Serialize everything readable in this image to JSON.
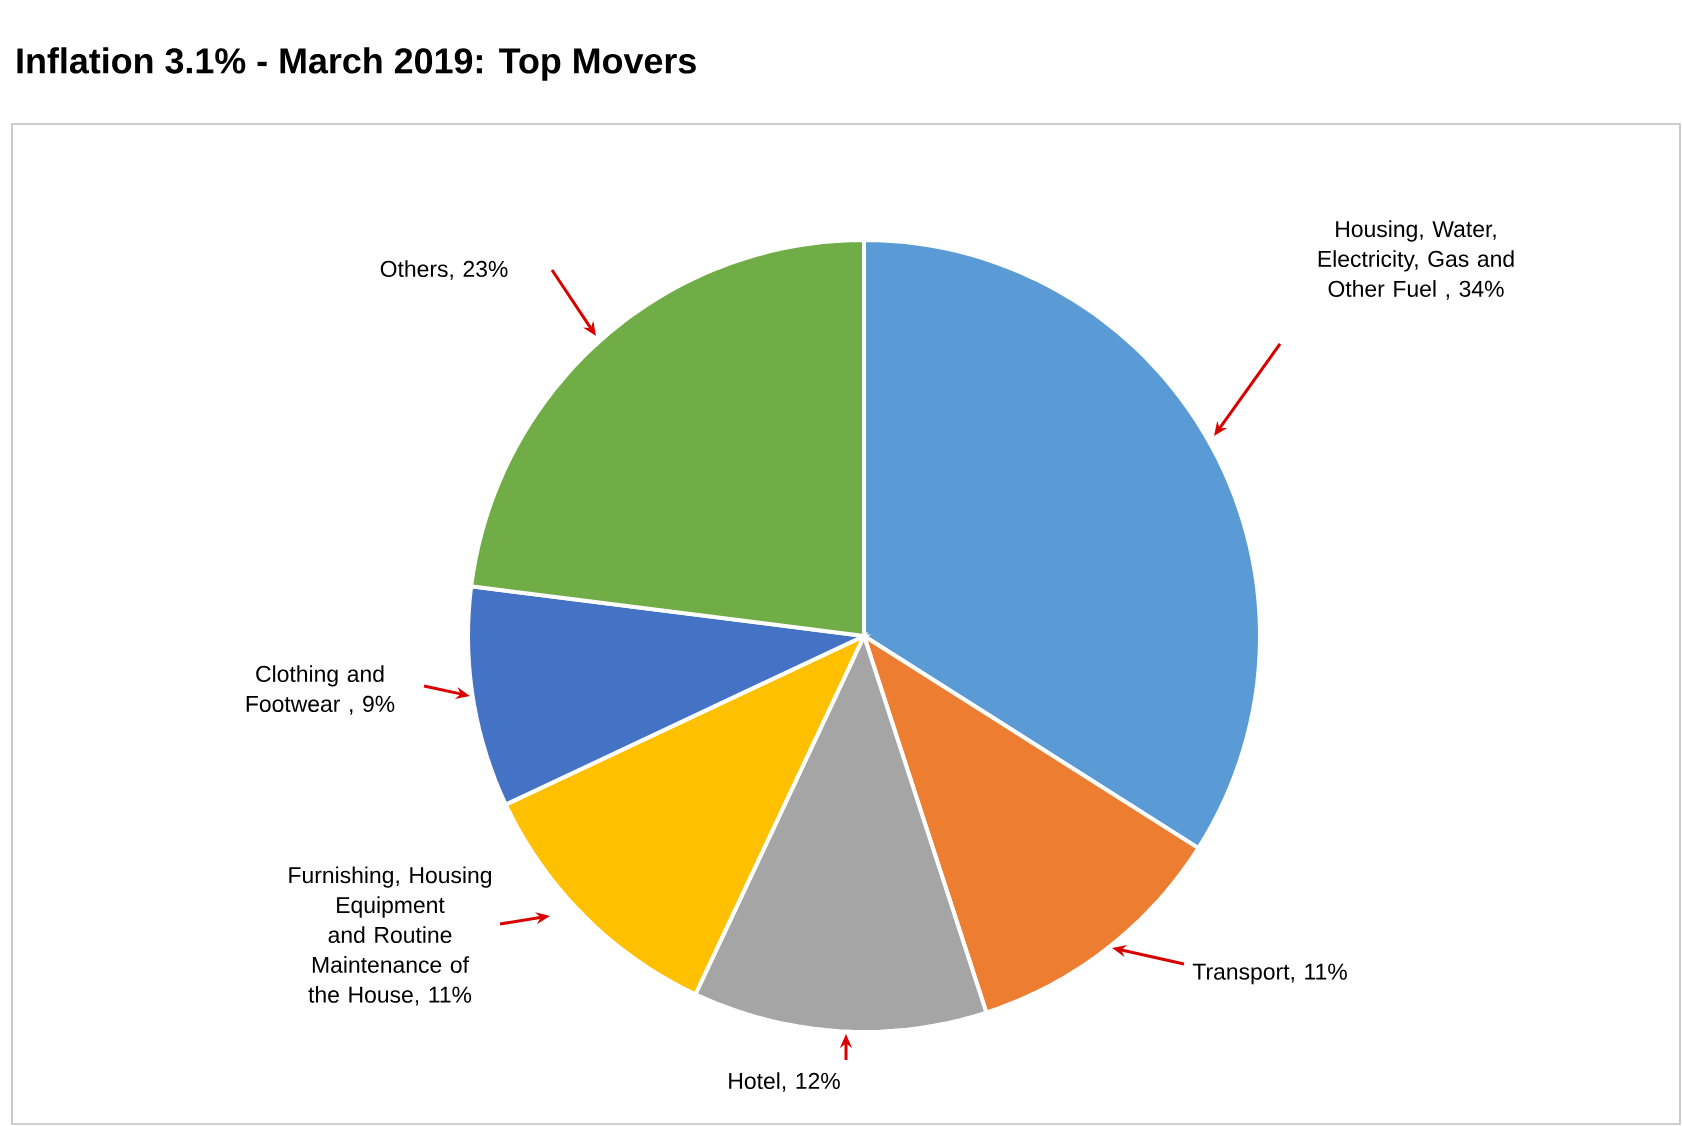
{
  "chart_data": {
    "type": "pie",
    "title": "Inflation 3.1% - March 2019: Top Movers",
    "categories": [
      "Housing, Water, Electricity, Gas and Other Fuel , 34%",
      "Transport, 11%",
      "Hotel, 12%",
      "Furnishing, Housing Equipment and Routine Maintenance of the House, 11%",
      "Clothing and Footwear , 9%",
      "Others, 23%"
    ],
    "values": [
      34,
      11,
      12,
      11,
      9,
      23
    ],
    "colors": [
      "#5b9bd5",
      "#ed7d31",
      "#a5a5a5",
      "#ffc000",
      "#4472c4",
      "#70ad47"
    ]
  }
}
